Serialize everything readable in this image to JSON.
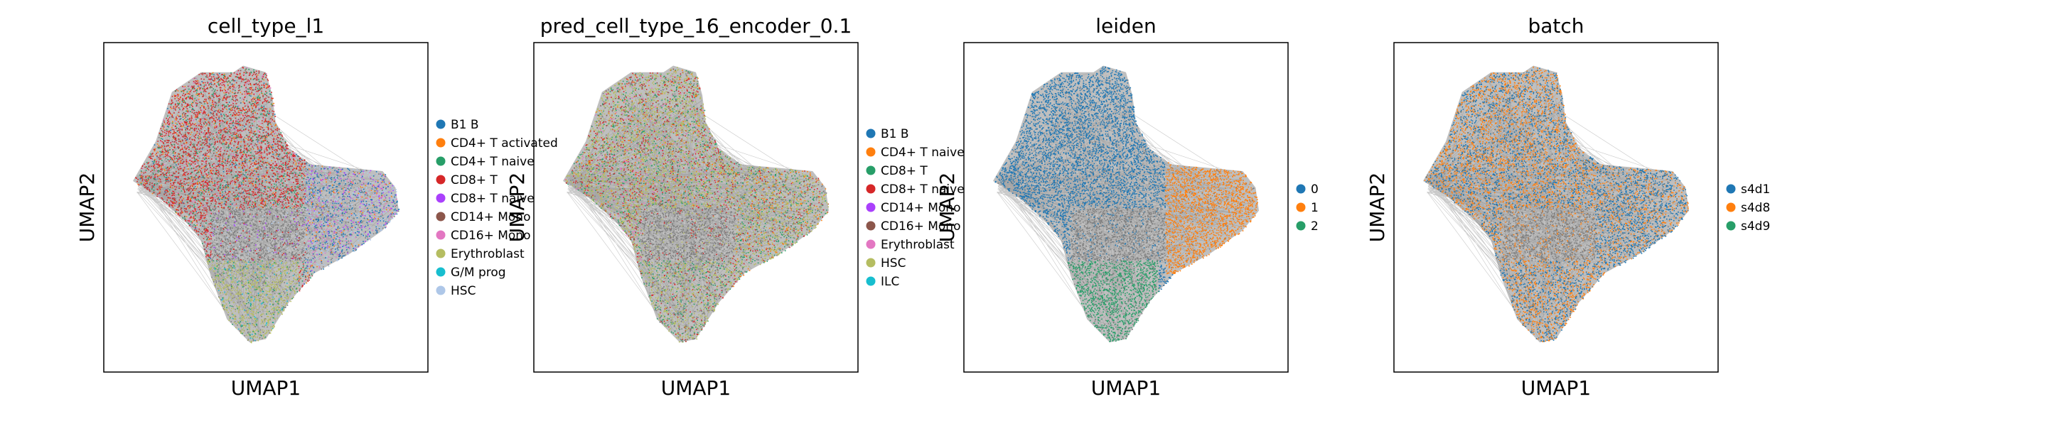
{
  "chart_data": [
    {
      "type": "scatter",
      "title": "cell_type_l1",
      "xlabel": "UMAP1",
      "ylabel": "UMAP2",
      "legend_position": "right",
      "legend": [
        {
          "label": "B1 B",
          "color": "#1f77b4"
        },
        {
          "label": "CD4+ T activated",
          "color": "#ff7f0e"
        },
        {
          "label": "CD4+ T naive",
          "color": "#279e68"
        },
        {
          "label": "CD8+ T",
          "color": "#d62728"
        },
        {
          "label": "CD8+ T naive",
          "color": "#aa40fc"
        },
        {
          "label": "CD14+ Mono",
          "color": "#8c564b"
        },
        {
          "label": "CD16+ Mono",
          "color": "#e377c2"
        },
        {
          "label": "Erythroblast",
          "color": "#b5bd61"
        },
        {
          "label": "G/M prog",
          "color": "#17becf"
        },
        {
          "label": "HSC",
          "color": "#aec7e8"
        }
      ]
    },
    {
      "type": "scatter",
      "title": "pred_cell_type_16_encoder_0.1",
      "xlabel": "UMAP1",
      "ylabel": "UMAP2",
      "legend_position": "right",
      "legend": [
        {
          "label": "B1 B",
          "color": "#1f77b4"
        },
        {
          "label": "CD4+ T naive",
          "color": "#ff7f0e"
        },
        {
          "label": "CD8+ T",
          "color": "#279e68"
        },
        {
          "label": "CD8+ T naive",
          "color": "#d62728"
        },
        {
          "label": "CD14+ Mono",
          "color": "#aa40fc"
        },
        {
          "label": "CD16+ Mono",
          "color": "#8c564b"
        },
        {
          "label": "Erythroblast",
          "color": "#e377c2"
        },
        {
          "label": "HSC",
          "color": "#b5bd61"
        },
        {
          "label": "ILC",
          "color": "#17becf"
        }
      ]
    },
    {
      "type": "scatter",
      "title": "leiden",
      "xlabel": "UMAP1",
      "ylabel": "UMAP2",
      "legend_position": "right",
      "legend": [
        {
          "label": "0",
          "color": "#1f77b4"
        },
        {
          "label": "1",
          "color": "#ff7f0e"
        },
        {
          "label": "2",
          "color": "#279e68"
        }
      ]
    },
    {
      "type": "scatter",
      "title": "batch",
      "xlabel": "UMAP1",
      "ylabel": "UMAP2",
      "legend_position": "right",
      "legend": [
        {
          "label": "s4d1",
          "color": "#1f77b4"
        },
        {
          "label": "s4d8",
          "color": "#ff7f0e"
        },
        {
          "label": "s4d9",
          "color": "#279e68"
        }
      ]
    }
  ],
  "colors": {
    "edge_gray": "#808080",
    "frame": "#000000",
    "background": "#ffffff"
  }
}
